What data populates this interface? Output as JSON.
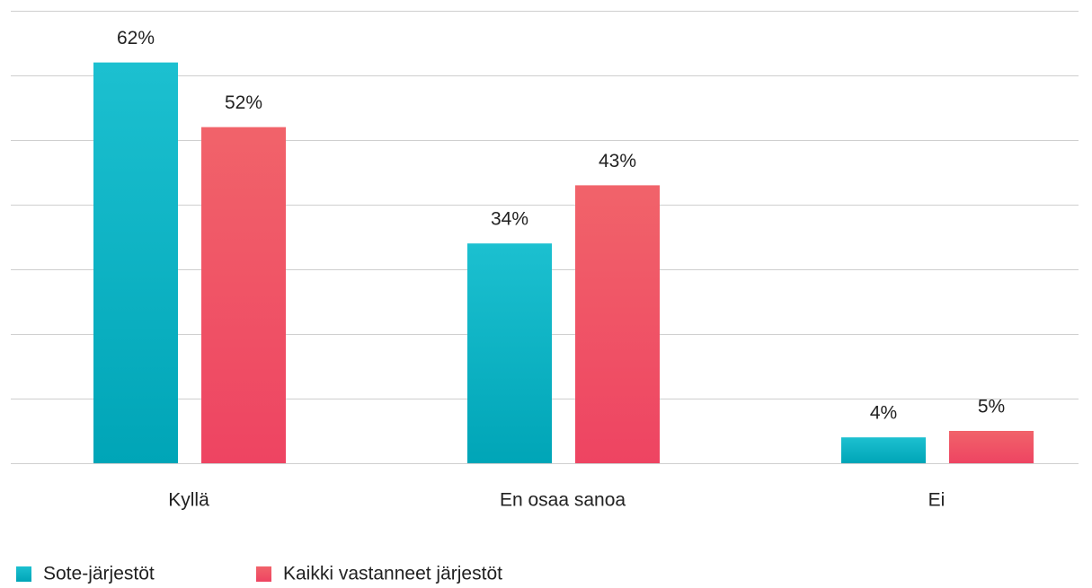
{
  "chart_data": {
    "type": "bar",
    "categories": [
      "Kyllä",
      "En osaa sanoa",
      "Ei"
    ],
    "series": [
      {
        "name": "Sote-järjestöt",
        "color": [
          "#1cc0d0",
          "#00a5b7"
        ],
        "values": [
          62,
          34,
          4
        ],
        "value_labels": [
          "62%",
          "34%",
          "4%"
        ]
      },
      {
        "name": "Kaikki vastanneet järjestöt",
        "color": [
          "#f1636a",
          "#ee4462"
        ],
        "values": [
          52,
          43,
          5
        ],
        "value_labels": [
          "52%",
          "43%",
          "5%"
        ]
      }
    ],
    "ylim": [
      0,
      70
    ],
    "yticks": [
      0,
      10,
      20,
      30,
      40,
      50,
      60,
      70
    ],
    "grid": true,
    "legend": "bottom-left"
  }
}
